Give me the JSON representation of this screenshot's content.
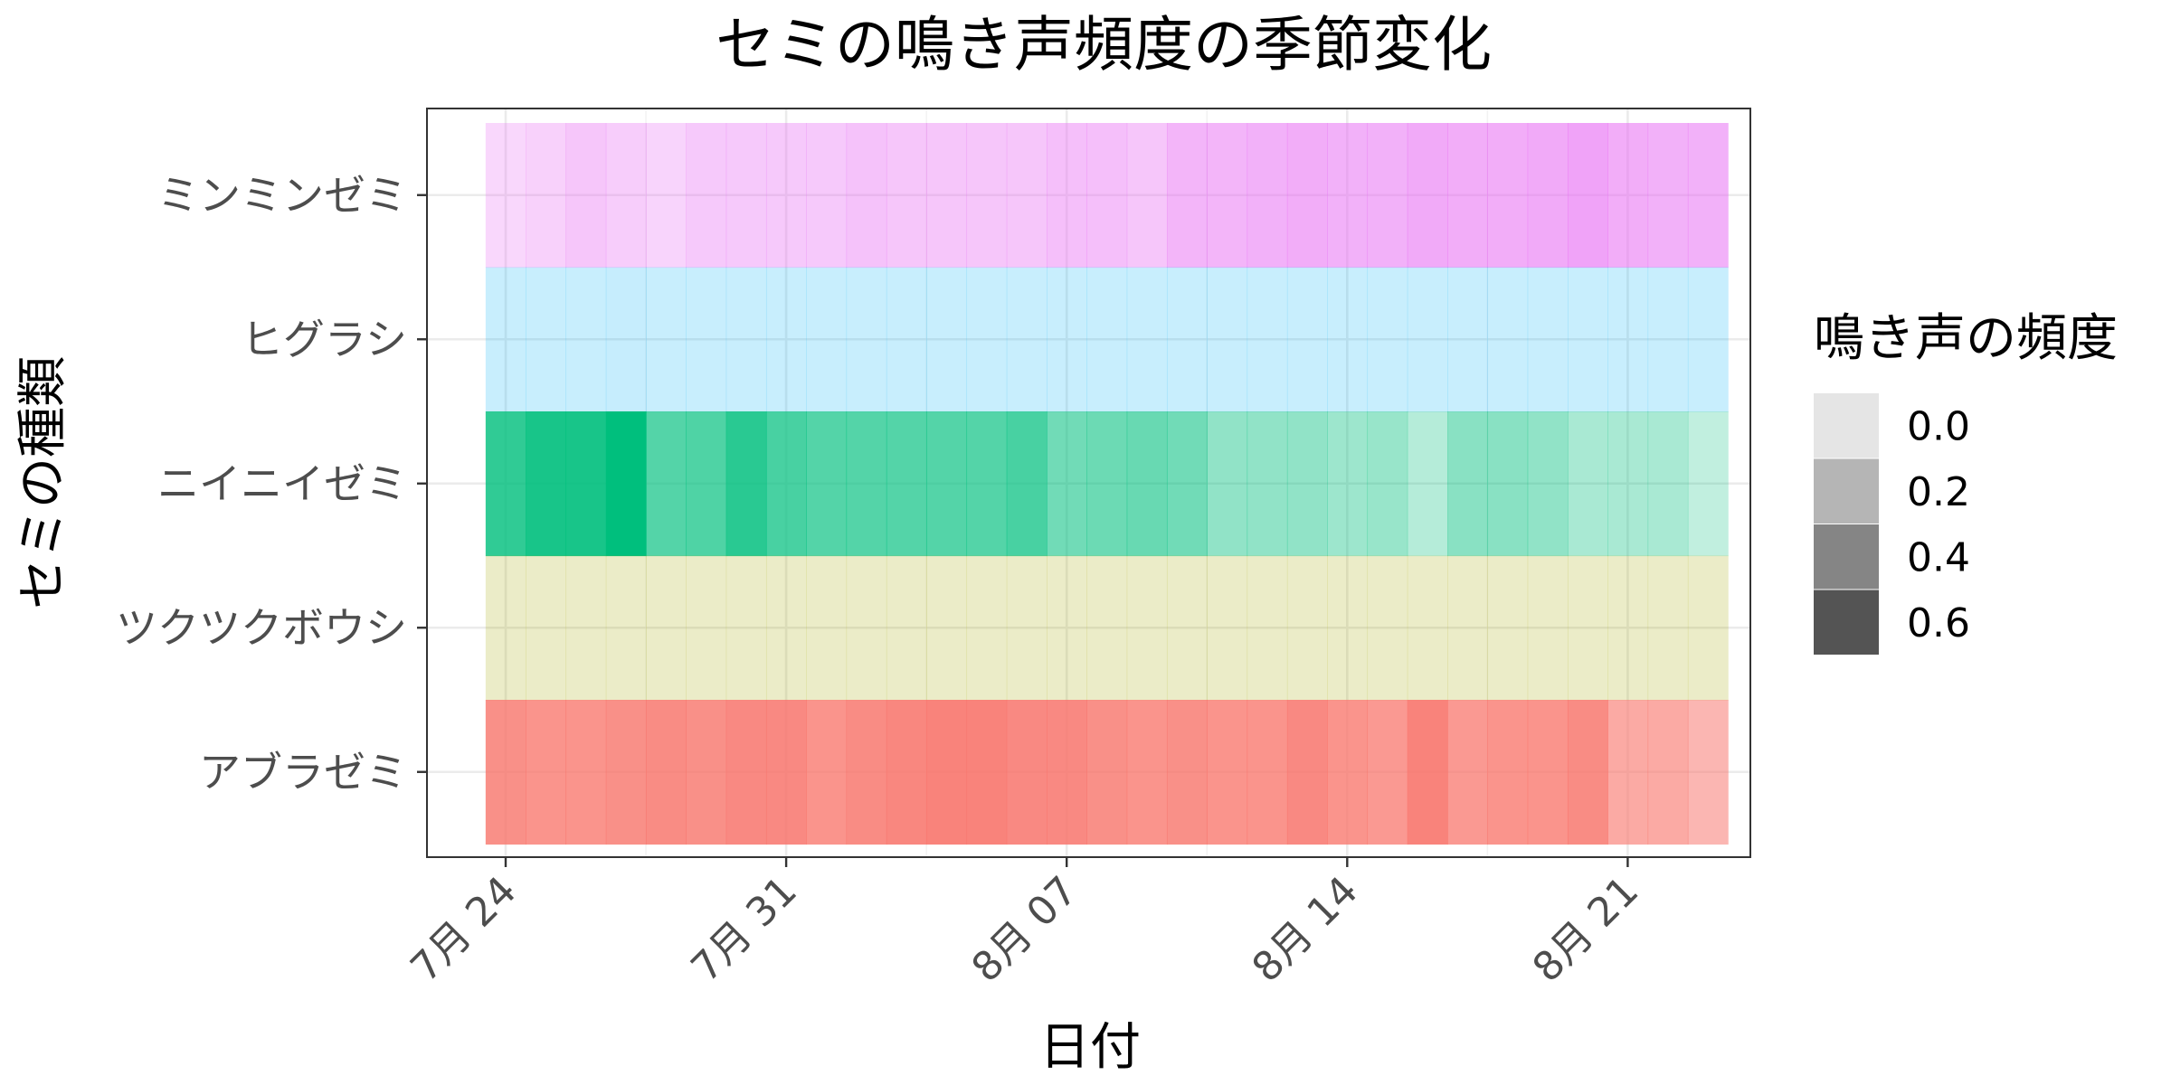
{
  "chart_data": {
    "type": "heatmap",
    "title": "セミの鳴き声頻度の季節変化",
    "xlabel": "日付",
    "ylabel": "セミの種類",
    "x_start": "07-24",
    "x_ticks": [
      "7月 24",
      "7月 31",
      "8月 07",
      "8月 14",
      "8月 21"
    ],
    "x_tick_dates": [
      "07-24",
      "07-31",
      "08-07",
      "08-14",
      "08-21"
    ],
    "grid": true,
    "legend": {
      "title": "鳴き声の頻度",
      "position": "right",
      "entries": [
        "0.0",
        "0.2",
        "0.4",
        "0.6"
      ],
      "values": [
        0.0,
        0.2,
        0.4,
        0.6
      ]
    },
    "series": [
      {
        "name": "ミンミンゼミ",
        "color": "#e76bf3",
        "values": [
          0.18,
          0.22,
          0.3,
          0.25,
          0.2,
          0.28,
          0.28,
          0.28,
          0.28,
          0.33,
          0.3,
          0.3,
          0.3,
          0.3,
          0.35,
          0.35,
          0.3,
          0.42,
          0.42,
          0.45,
          0.48,
          0.45,
          0.45,
          0.5,
          0.48,
          0.48,
          0.5,
          0.55,
          0.48,
          0.45,
          0.45
        ]
      },
      {
        "name": "ヒグラシ",
        "color": "#00b0f6",
        "values": [
          0.12,
          0.12,
          0.12,
          0.13,
          0.12,
          0.12,
          0.12,
          0.12,
          0.12,
          0.12,
          0.12,
          0.12,
          0.12,
          0.12,
          0.12,
          0.12,
          0.12,
          0.12,
          0.12,
          0.12,
          0.12,
          0.12,
          0.12,
          0.12,
          0.12,
          0.12,
          0.12,
          0.12,
          0.12,
          0.12,
          0.12
        ]
      },
      {
        "name": "ニイニイゼミ",
        "color": "#00bf7d",
        "values": [
          0.75,
          0.85,
          0.85,
          0.95,
          0.6,
          0.62,
          0.78,
          0.65,
          0.6,
          0.6,
          0.6,
          0.6,
          0.6,
          0.65,
          0.48,
          0.5,
          0.52,
          0.48,
          0.35,
          0.35,
          0.35,
          0.3,
          0.32,
          0.2,
          0.38,
          0.38,
          0.35,
          0.25,
          0.25,
          0.25,
          0.15
        ]
      },
      {
        "name": "ツクツクボウシ",
        "color": "#a3a500",
        "values": [
          0.12,
          0.12,
          0.12,
          0.12,
          0.12,
          0.12,
          0.12,
          0.12,
          0.12,
          0.12,
          0.12,
          0.12,
          0.12,
          0.12,
          0.12,
          0.12,
          0.12,
          0.12,
          0.12,
          0.12,
          0.12,
          0.12,
          0.12,
          0.12,
          0.12,
          0.12,
          0.12,
          0.12,
          0.12,
          0.12,
          0.12
        ]
      },
      {
        "name": "アブラゼミ",
        "color": "#f8766d",
        "values": [
          0.75,
          0.72,
          0.72,
          0.75,
          0.78,
          0.75,
          0.8,
          0.8,
          0.72,
          0.78,
          0.82,
          0.85,
          0.85,
          0.8,
          0.8,
          0.75,
          0.72,
          0.75,
          0.72,
          0.72,
          0.8,
          0.72,
          0.68,
          0.85,
          0.68,
          0.72,
          0.72,
          0.78,
          0.55,
          0.55,
          0.45
        ]
      }
    ]
  }
}
